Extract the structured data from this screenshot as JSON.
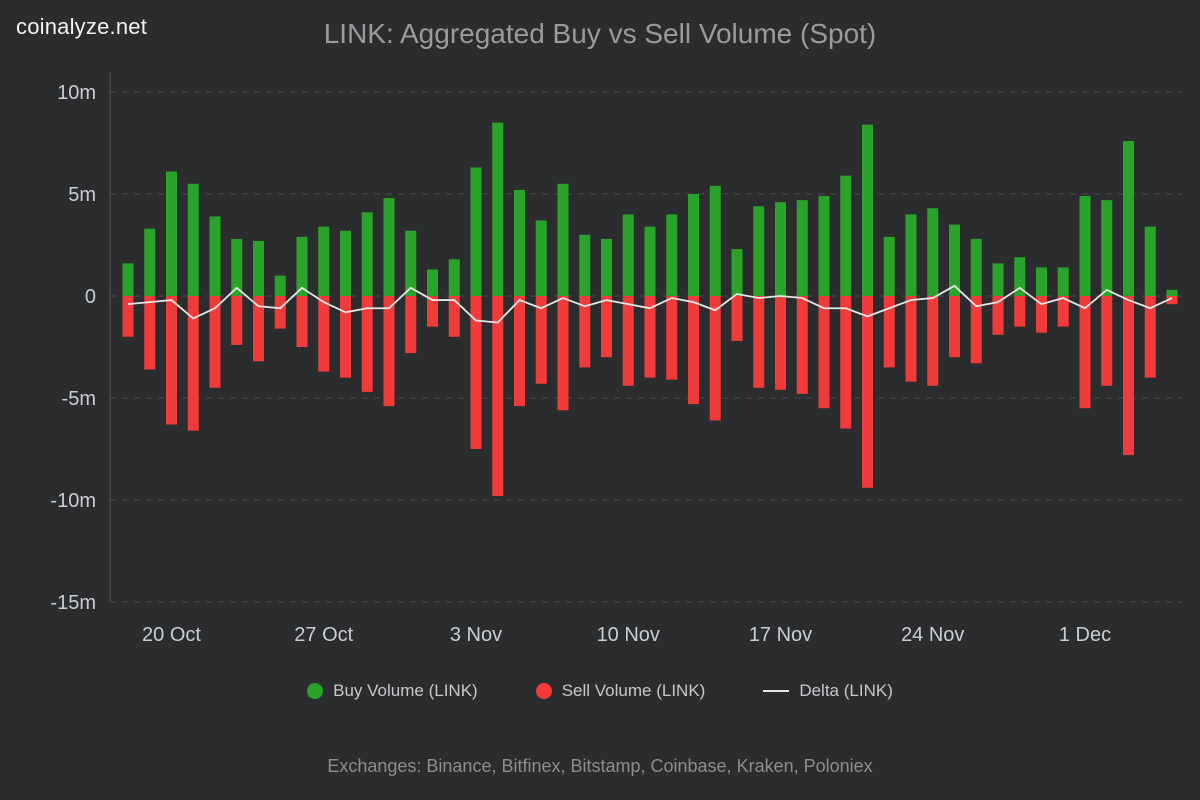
{
  "brand": "coinalyze.net",
  "title": "LINK: Aggregated Buy vs Sell Volume (Spot)",
  "footer": "Exchanges: Binance, Bitfinex, Bitstamp, Coinbase, Kraken, Poloniex",
  "colors": {
    "background": "#2b2c2e",
    "buy": "#2aa32a",
    "sell": "#f13b3b",
    "delta": "#e6e6e6",
    "grid": "#4a4c4e",
    "axis_text": "#cbced1",
    "title_text": "#9a9b9d"
  },
  "legend": [
    {
      "label": "Buy Volume (LINK)",
      "marker": "dot",
      "color": "#2aa32a"
    },
    {
      "label": "Sell Volume (LINK)",
      "marker": "dot",
      "color": "#f13b3b"
    },
    {
      "label": "Delta (LINK)",
      "marker": "line",
      "color": "#e6e6e6"
    }
  ],
  "chart_data": {
    "type": "bar",
    "title": "LINK: Aggregated Buy vs Sell Volume (Spot)",
    "unit": "millions",
    "ylim": [
      -15,
      10
    ],
    "grid": "dashed-horizontal",
    "legend_position": "bottom",
    "yticks": [
      {
        "v": 10,
        "label": "10m"
      },
      {
        "v": 5,
        "label": "5m"
      },
      {
        "v": 0,
        "label": "0"
      },
      {
        "v": -5,
        "label": "-5m"
      },
      {
        "v": -10,
        "label": "-10m"
      },
      {
        "v": -15,
        "label": "-15m"
      }
    ],
    "x": [
      "18 Oct",
      "19 Oct",
      "20 Oct",
      "21 Oct",
      "22 Oct",
      "23 Oct",
      "24 Oct",
      "25 Oct",
      "26 Oct",
      "27 Oct",
      "28 Oct",
      "29 Oct",
      "30 Oct",
      "31 Oct",
      "1 Nov",
      "2 Nov",
      "3 Nov",
      "4 Nov",
      "5 Nov",
      "6 Nov",
      "7 Nov",
      "8 Nov",
      "9 Nov",
      "10 Nov",
      "11 Nov",
      "12 Nov",
      "13 Nov",
      "14 Nov",
      "15 Nov",
      "16 Nov",
      "17 Nov",
      "18 Nov",
      "19 Nov",
      "20 Nov",
      "21 Nov",
      "22 Nov",
      "23 Nov",
      "24 Nov",
      "25 Nov",
      "26 Nov",
      "27 Nov",
      "28 Nov",
      "29 Nov",
      "30 Nov",
      "1 Dec",
      "2 Dec",
      "3 Dec",
      "4 Dec",
      "5 Dec"
    ],
    "xticks": [
      {
        "index": 2,
        "label": "20 Oct"
      },
      {
        "index": 9,
        "label": "27 Oct"
      },
      {
        "index": 16,
        "label": "3 Nov"
      },
      {
        "index": 23,
        "label": "10 Nov"
      },
      {
        "index": 30,
        "label": "17 Nov"
      },
      {
        "index": 37,
        "label": "24 Nov"
      },
      {
        "index": 44,
        "label": "1 Dec"
      }
    ],
    "series": [
      {
        "name": "Buy Volume (LINK)",
        "type": "bar",
        "color": "#2aa32a",
        "values": [
          1.6,
          3.3,
          6.1,
          5.5,
          3.9,
          2.8,
          2.7,
          1.0,
          2.9,
          3.4,
          3.2,
          4.1,
          4.8,
          3.2,
          1.3,
          1.8,
          6.3,
          8.5,
          5.2,
          3.7,
          5.5,
          3.0,
          2.8,
          4.0,
          3.4,
          4.0,
          5.0,
          5.4,
          2.3,
          4.4,
          4.6,
          4.7,
          4.9,
          5.9,
          8.4,
          2.9,
          4.0,
          4.3,
          3.5,
          2.8,
          1.6,
          1.9,
          1.4,
          1.4,
          4.9,
          4.7,
          7.6,
          3.4,
          0.3
        ]
      },
      {
        "name": "Sell Volume (LINK)",
        "type": "bar",
        "color": "#f13b3b",
        "values": [
          -2.0,
          -3.6,
          -6.3,
          -6.6,
          -4.5,
          -2.4,
          -3.2,
          -1.6,
          -2.5,
          -3.7,
          -4.0,
          -4.7,
          -5.4,
          -2.8,
          -1.5,
          -2.0,
          -7.5,
          -9.8,
          -5.4,
          -4.3,
          -5.6,
          -3.5,
          -3.0,
          -4.4,
          -4.0,
          -4.1,
          -5.3,
          -6.1,
          -2.2,
          -4.5,
          -4.6,
          -4.8,
          -5.5,
          -6.5,
          -9.4,
          -3.5,
          -4.2,
          -4.4,
          -3.0,
          -3.3,
          -1.9,
          -1.5,
          -1.8,
          -1.5,
          -5.5,
          -4.4,
          -7.8,
          -4.0,
          -0.4
        ]
      },
      {
        "name": "Delta (LINK)",
        "type": "line",
        "color": "#e6e6e6",
        "values": [
          -0.4,
          -0.3,
          -0.2,
          -1.1,
          -0.6,
          0.4,
          -0.5,
          -0.6,
          0.4,
          -0.3,
          -0.8,
          -0.6,
          -0.6,
          0.4,
          -0.2,
          -0.2,
          -1.2,
          -1.3,
          -0.2,
          -0.6,
          -0.1,
          -0.5,
          -0.2,
          -0.4,
          -0.6,
          -0.1,
          -0.3,
          -0.7,
          0.1,
          -0.1,
          0.0,
          -0.1,
          -0.6,
          -0.6,
          -1.0,
          -0.6,
          -0.2,
          -0.1,
          0.5,
          -0.5,
          -0.3,
          0.4,
          -0.4,
          -0.1,
          -0.6,
          0.3,
          -0.2,
          -0.6,
          -0.1
        ]
      }
    ]
  }
}
